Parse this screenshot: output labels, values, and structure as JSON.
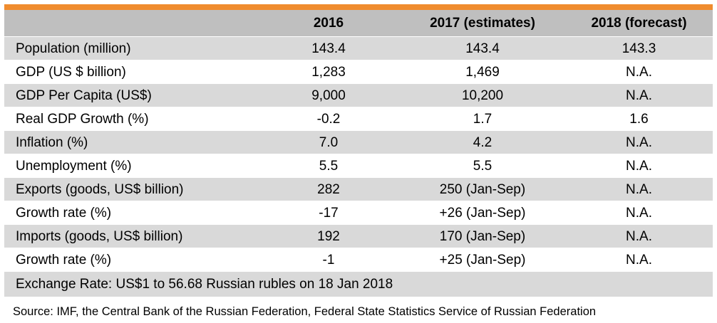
{
  "colors": {
    "accent_bar": "#f08c2e",
    "header_bg": "#bfbfbf",
    "shaded_row": "#d9d9d9"
  },
  "table": {
    "headers": [
      "",
      "2016",
      "2017 (estimates)",
      "2018 (forecast)"
    ],
    "rows": [
      [
        "Population (million)",
        "143.4",
        "143.4",
        "143.3"
      ],
      [
        "GDP (US $ billion)",
        "1,283",
        "1,469",
        "N.A."
      ],
      [
        "GDP Per Capita (US$)",
        "9,000",
        "10,200",
        "N.A."
      ],
      [
        "Real GDP Growth (%)",
        "-0.2",
        "1.7",
        "1.6"
      ],
      [
        "Inflation (%)",
        "7.0",
        "4.2",
        "N.A."
      ],
      [
        "Unemployment (%)",
        "5.5",
        "5.5",
        "N.A."
      ],
      [
        "Exports (goods, US$ billion)",
        "282",
        "250 (Jan-Sep)",
        "N.A."
      ],
      [
        "Growth rate (%)",
        "-17",
        "+26 (Jan-Sep)",
        "N.A."
      ],
      [
        "Imports (goods, US$ billion)",
        "192",
        "170 (Jan-Sep)",
        "N.A."
      ],
      [
        "Growth rate (%)",
        "-1",
        "+25 (Jan-Sep)",
        "N.A."
      ]
    ],
    "exchange_note": "Exchange Rate: US$1 to 56.68 Russian rubles on 18 Jan 2018"
  },
  "source": "Source: IMF, the Central Bank of the Russian Federation, Federal State Statistics Service of Russian Federation"
}
